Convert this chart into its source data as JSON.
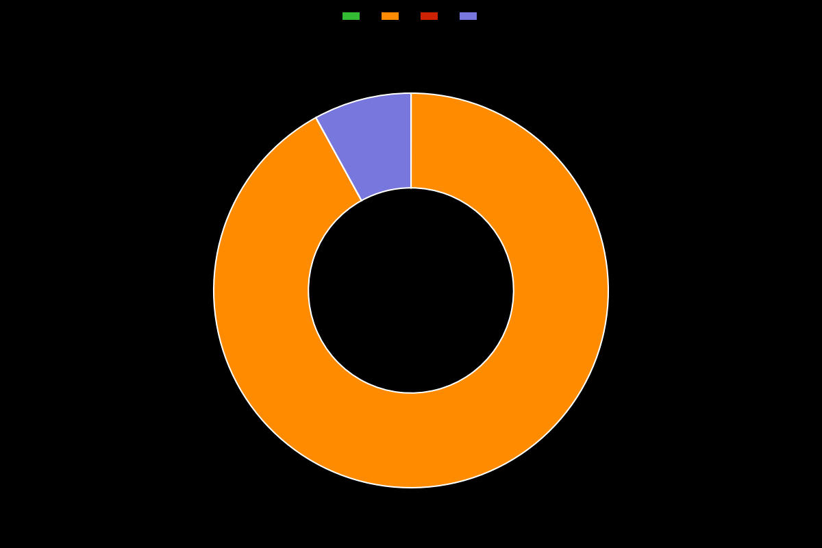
{
  "values": [
    0.01,
    91.99,
    0.01,
    8.0
  ],
  "colors": [
    "#33bb33",
    "#ff8c00",
    "#cc2200",
    "#7777dd"
  ],
  "legend_labels": [
    "",
    "",
    "",
    ""
  ],
  "background_color": "#000000",
  "wedge_linewidth": 1.5,
  "wedge_linecolor": "#ffffff",
  "donut_width": 0.48,
  "startangle": 90,
  "figsize": [
    12.0,
    8.0
  ],
  "dpi": 100
}
